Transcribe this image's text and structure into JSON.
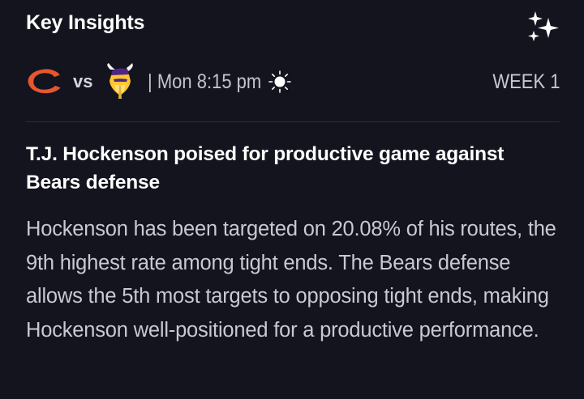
{
  "header": {
    "title": "Key Insights",
    "icon": "sparkles-icon"
  },
  "matchup": {
    "home_logo": "bears-logo",
    "vs_label": "vs",
    "away_logo": "vikings-logo",
    "time_label": "| Mon 8:15 pm",
    "weather_icon": "sun-icon",
    "week_label": "WEEK 1"
  },
  "insight": {
    "headline": "T.J. Hockenson poised for productive game against Bears defense",
    "body": "Hockenson has been targeted on 20.08% of his routes, the 9th highest rate among tight ends. The Bears defense allows the 5th most targets to opposing tight ends, making Hockenson well-positioned for a productive performance."
  },
  "colors": {
    "background": "#14141f",
    "bears_orange": "#e8562a",
    "bears_navy": "#0b162a",
    "vikings_purple": "#4f2683",
    "vikings_gold": "#ffc62f",
    "text_primary": "#ffffff",
    "text_secondary": "#c9c9d1"
  }
}
